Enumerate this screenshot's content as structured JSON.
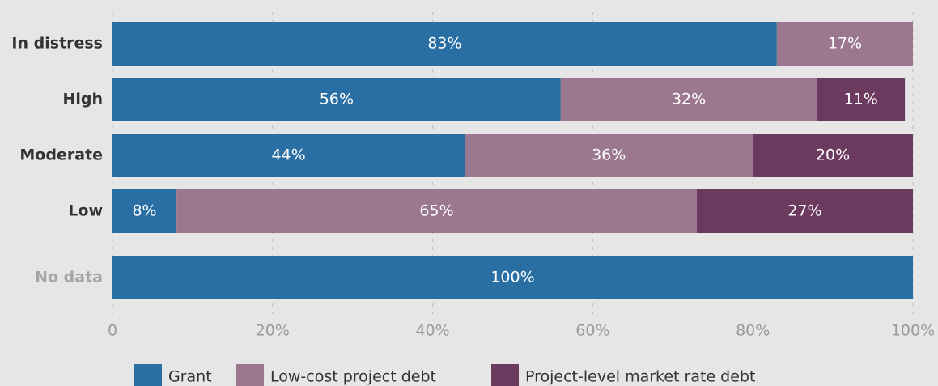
{
  "chart_data": {
    "type": "stacked-barh",
    "categories": [
      "In distress",
      "High",
      "Moderate",
      "Low",
      "No data"
    ],
    "category_label_colors": [
      "#333333",
      "#333333",
      "#333333",
      "#333333",
      "#a6a6a6"
    ],
    "series": [
      {
        "name": "Grant",
        "color": "#2a6fa3",
        "values": [
          83,
          56,
          44,
          8,
          100
        ],
        "value_labels": [
          "83%",
          "56%",
          "44%",
          "8%",
          "100%"
        ]
      },
      {
        "name": "Low-cost project debt",
        "color": "#9b788f",
        "values": [
          17,
          32,
          36,
          65,
          null
        ],
        "value_labels": [
          "17%",
          "32%",
          "36%",
          "65%",
          null
        ]
      },
      {
        "name": "Project-level market rate debt",
        "color": "#6b3a5e",
        "values": [
          null,
          11,
          20,
          27,
          null
        ],
        "value_labels": [
          null,
          "11%",
          "20%",
          "27%",
          null
        ]
      }
    ],
    "xlim": [
      0,
      100
    ],
    "xticks": [
      0,
      {
        "value": 20,
        "label": "20%"
      },
      {
        "value": 40,
        "label": "40%"
      },
      {
        "value": 60,
        "label": "60%"
      },
      {
        "value": 80,
        "label": "80%"
      },
      {
        "value": 100,
        "label": "100%"
      }
    ],
    "grid": true
  }
}
